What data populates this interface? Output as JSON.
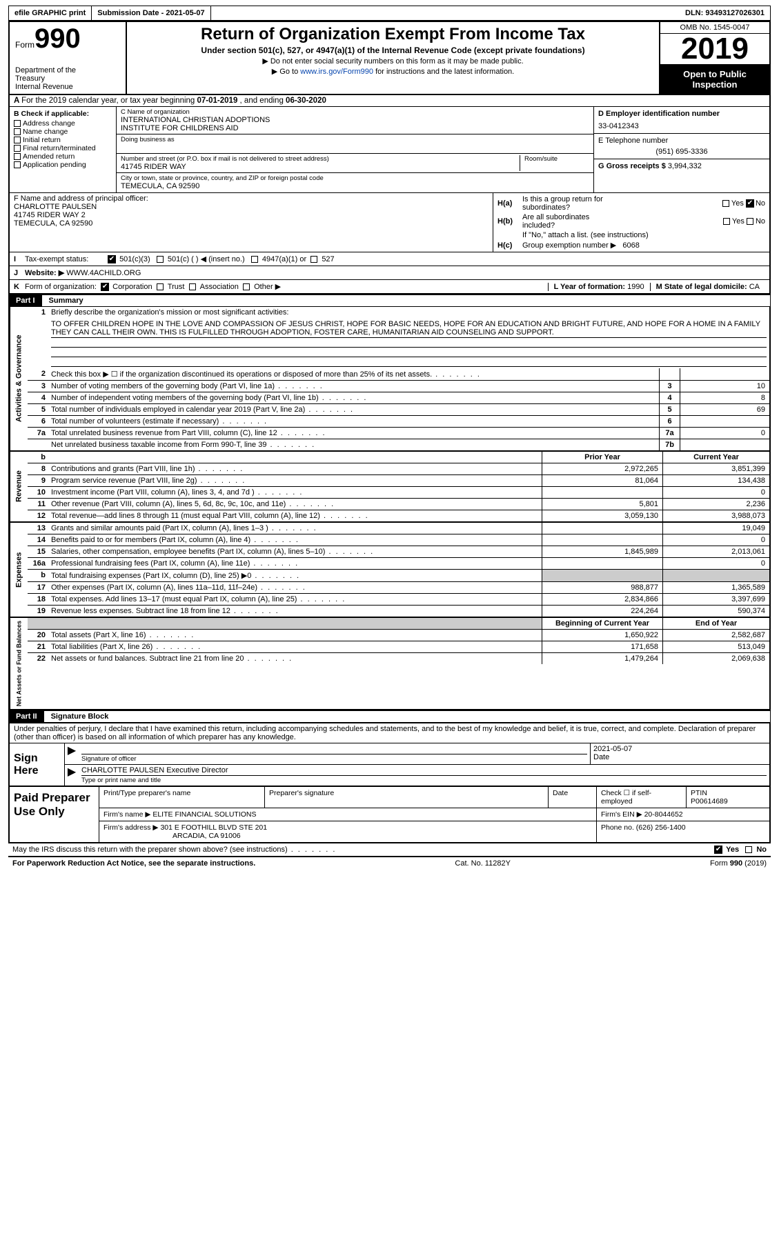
{
  "topbar": {
    "efile": "efile GRAPHIC print",
    "submission_label": "Submission Date - ",
    "submission_date": "2021-05-07",
    "dln_label": "DLN: ",
    "dln": "93493127026301"
  },
  "header": {
    "form_word": "Form",
    "form_num": "990",
    "dept1": "Department of the",
    "dept2": "Treasury",
    "dept3": "Internal Revenue",
    "title": "Return of Organization Exempt From Income Tax",
    "subtitle": "Under section 501(c), 527, or 4947(a)(1) of the Internal Revenue Code (except private foundations)",
    "note1": "▶ Do not enter social security numbers on this form as it may be made public.",
    "note2_pre": "▶ Go to ",
    "note2_link": "www.irs.gov/Form990",
    "note2_post": " for instructions and the latest information.",
    "omb": "OMB No. 1545-0047",
    "year": "2019",
    "inspection1": "Open to Public",
    "inspection2": "Inspection"
  },
  "lineA": {
    "pre": "For the 2019 calendar year, or tax year beginning ",
    "begin": "07-01-2019",
    "mid": "   , and ending ",
    "end": "06-30-2020"
  },
  "boxB": {
    "header": "B Check if applicable:",
    "items": [
      "Address change",
      "Name change",
      "Initial return",
      "Final return/terminated",
      "Amended return",
      "Application pending"
    ]
  },
  "boxC": {
    "name_lbl": "C Name of organization",
    "name1": "INTERNATIONAL CHRISTIAN ADOPTIONS",
    "name2": "INSTITUTE FOR CHILDRENS AID",
    "dba_lbl": "Doing business as",
    "addr_lbl": "Number and street (or P.O. box if mail is not delivered to street address)",
    "room_lbl": "Room/suite",
    "addr": "41745 RIDER WAY",
    "city_lbl": "City or town, state or province, country, and ZIP or foreign postal code",
    "city": "TEMECULA, CA  92590"
  },
  "boxD": {
    "ein_lbl": "D Employer identification number",
    "ein": "33-0412343",
    "phone_lbl": "E Telephone number",
    "phone": "(951) 695-3336",
    "gross_lbl": "G Gross receipts $ ",
    "gross": "3,994,332"
  },
  "boxF": {
    "lbl": "F  Name and address of principal officer:",
    "name": "CHARLOTTE PAULSEN",
    "addr1": "41745 RIDER WAY 2",
    "addr2": "TEMECULA, CA  92590"
  },
  "boxH": {
    "a_lbl_pre": "H(a)",
    "a_text1": "Is this a group return for",
    "a_text2": "subordinates?",
    "b_lbl_pre": "H(b)",
    "b_text1": "Are all subordinates",
    "b_text2": "included?",
    "attach": "If \"No,\" attach a list. (see instructions)",
    "c_lbl_pre": "H(c)",
    "c_text": "Group exemption number ▶",
    "c_val": "6068",
    "yes": "Yes",
    "no": "No"
  },
  "rowI": {
    "lbl": "I",
    "text": "Tax-exempt status:",
    "opts": [
      "501(c)(3)",
      "501(c) (  ) ◀ (insert no.)",
      "4947(a)(1) or",
      "527"
    ]
  },
  "rowJ": {
    "lbl": "J",
    "text": "Website: ▶",
    "val": "WWW.4ACHILD.ORG"
  },
  "rowK": {
    "lbl": "K",
    "text": "Form of organization:",
    "opts": [
      "Corporation",
      "Trust",
      "Association",
      "Other ▶"
    ],
    "L_lbl": "L Year of formation: ",
    "L_val": "1990",
    "M_lbl": "M State of legal domicile: ",
    "M_val": "CA"
  },
  "part1": {
    "num": "Part I",
    "title": "Summary"
  },
  "mission": {
    "n": "1",
    "lead": "Briefly describe the organization's mission or most significant activities:",
    "text": "TO OFFER CHILDREN HOPE IN THE LOVE AND COMPASSION OF JESUS CHRIST, HOPE FOR BASIC NEEDS, HOPE FOR AN EDUCATION AND BRIGHT FUTURE, AND HOPE FOR A HOME IN A FAMILY THEY CAN CALL THEIR OWN. THIS IS FULFILLED THROUGH ADOPTION, FOSTER CARE, HUMANITARIAN AID COUNSELING AND SUPPORT."
  },
  "gov_rows": [
    {
      "n": "2",
      "t": "Check this box ▶ ☐  if the organization discontinued its operations or disposed of more than 25% of its net assets.",
      "mini": "",
      "val": ""
    },
    {
      "n": "3",
      "t": "Number of voting members of the governing body (Part VI, line 1a)",
      "mini": "3",
      "val": "10"
    },
    {
      "n": "4",
      "t": "Number of independent voting members of the governing body (Part VI, line 1b)",
      "mini": "4",
      "val": "8"
    },
    {
      "n": "5",
      "t": "Total number of individuals employed in calendar year 2019 (Part V, line 2a)",
      "mini": "5",
      "val": "69"
    },
    {
      "n": "6",
      "t": "Total number of volunteers (estimate if necessary)",
      "mini": "6",
      "val": ""
    },
    {
      "n": "7a",
      "t": "Total unrelated business revenue from Part VIII, column (C), line 12",
      "mini": "7a",
      "val": "0"
    },
    {
      "n": "",
      "t": "Net unrelated business taxable income from Form 990-T, line 39",
      "mini": "7b",
      "val": ""
    }
  ],
  "col_headers": {
    "prior": "Prior Year",
    "current": "Current Year",
    "boy": "Beginning of Current Year",
    "eoy": "End of Year"
  },
  "revenue": [
    {
      "n": "8",
      "t": "Contributions and grants (Part VIII, line 1h)",
      "c1": "2,972,265",
      "c2": "3,851,399"
    },
    {
      "n": "9",
      "t": "Program service revenue (Part VIII, line 2g)",
      "c1": "81,064",
      "c2": "134,438"
    },
    {
      "n": "10",
      "t": "Investment income (Part VIII, column (A), lines 3, 4, and 7d )",
      "c1": "",
      "c2": "0"
    },
    {
      "n": "11",
      "t": "Other revenue (Part VIII, column (A), lines 5, 6d, 8c, 9c, 10c, and 11e)",
      "c1": "5,801",
      "c2": "2,236"
    },
    {
      "n": "12",
      "t": "Total revenue—add lines 8 through 11 (must equal Part VIII, column (A), line 12)",
      "c1": "3,059,130",
      "c2": "3,988,073"
    }
  ],
  "expenses": [
    {
      "n": "13",
      "t": "Grants and similar amounts paid (Part IX, column (A), lines 1–3 )",
      "c1": "",
      "c2": "19,049"
    },
    {
      "n": "14",
      "t": "Benefits paid to or for members (Part IX, column (A), line 4)",
      "c1": "",
      "c2": "0"
    },
    {
      "n": "15",
      "t": "Salaries, other compensation, employee benefits (Part IX, column (A), lines 5–10)",
      "c1": "1,845,989",
      "c2": "2,013,061"
    },
    {
      "n": "16a",
      "t": "Professional fundraising fees (Part IX, column (A), line 11e)",
      "c1": "",
      "c2": "0"
    },
    {
      "n": "b",
      "t": "Total fundraising expenses (Part IX, column (D), line 25) ▶0",
      "c1": "shade",
      "c2": "shade"
    },
    {
      "n": "17",
      "t": "Other expenses (Part IX, column (A), lines 11a–11d, 11f–24e)",
      "c1": "988,877",
      "c2": "1,365,589"
    },
    {
      "n": "18",
      "t": "Total expenses. Add lines 13–17 (must equal Part IX, column (A), line 25)",
      "c1": "2,834,866",
      "c2": "3,397,699"
    },
    {
      "n": "19",
      "t": "Revenue less expenses. Subtract line 18 from line 12",
      "c1": "224,264",
      "c2": "590,374"
    }
  ],
  "netassets": [
    {
      "n": "20",
      "t": "Total assets (Part X, line 16)",
      "c1": "1,650,922",
      "c2": "2,582,687"
    },
    {
      "n": "21",
      "t": "Total liabilities (Part X, line 26)",
      "c1": "171,658",
      "c2": "513,049"
    },
    {
      "n": "22",
      "t": "Net assets or fund balances. Subtract line 21 from line 20",
      "c1": "1,479,264",
      "c2": "2,069,638"
    }
  ],
  "tabs": {
    "gov": "Activities & Governance",
    "rev": "Revenue",
    "exp": "Expenses",
    "net": "Net Assets or Fund Balances"
  },
  "part2": {
    "num": "Part II",
    "title": "Signature Block"
  },
  "sig": {
    "para": "Under penalties of perjury, I declare that I have examined this return, including accompanying schedules and statements, and to the best of my knowledge and belief, it is true, correct, and complete. Declaration of preparer (other than officer) is based on all information of which preparer has any knowledge.",
    "sign_here": "Sign Here",
    "sig_officer_cap": "Signature of officer",
    "date_cap": "Date",
    "date_val": "2021-05-07",
    "name_title": "CHARLOTTE PAULSEN  Executive Director",
    "name_title_cap": "Type or print name and title"
  },
  "prep": {
    "label": "Paid Preparer Use Only",
    "h1": "Print/Type preparer's name",
    "h2": "Preparer's signature",
    "h3": "Date",
    "h4_pre": "Check ☐ if self-employed",
    "h5_lbl": "PTIN",
    "h5_val": "P00614689",
    "firm_name_lbl": "Firm's name    ▶ ",
    "firm_name": "ELITE FINANCIAL SOLUTIONS",
    "firm_ein_lbl": "Firm's EIN ▶ ",
    "firm_ein": "20-8044652",
    "firm_addr_lbl": "Firm's address ▶ ",
    "firm_addr1": "301 E FOOTHILL BLVD STE 201",
    "firm_addr2": "ARCADIA, CA  91006",
    "phone_lbl": "Phone no. ",
    "phone": "(626) 256-1400"
  },
  "discuss": {
    "text": "May the IRS discuss this return with the preparer shown above? (see instructions)",
    "yes": "Yes",
    "no": "No"
  },
  "bottom": {
    "left": "For Paperwork Reduction Act Notice, see the separate instructions.",
    "mid": "Cat. No. 11282Y",
    "right": "Form 990 (2019)"
  },
  "colors": {
    "link": "#0645ad",
    "shade": "#cccccc",
    "black": "#000000",
    "white": "#ffffff"
  }
}
